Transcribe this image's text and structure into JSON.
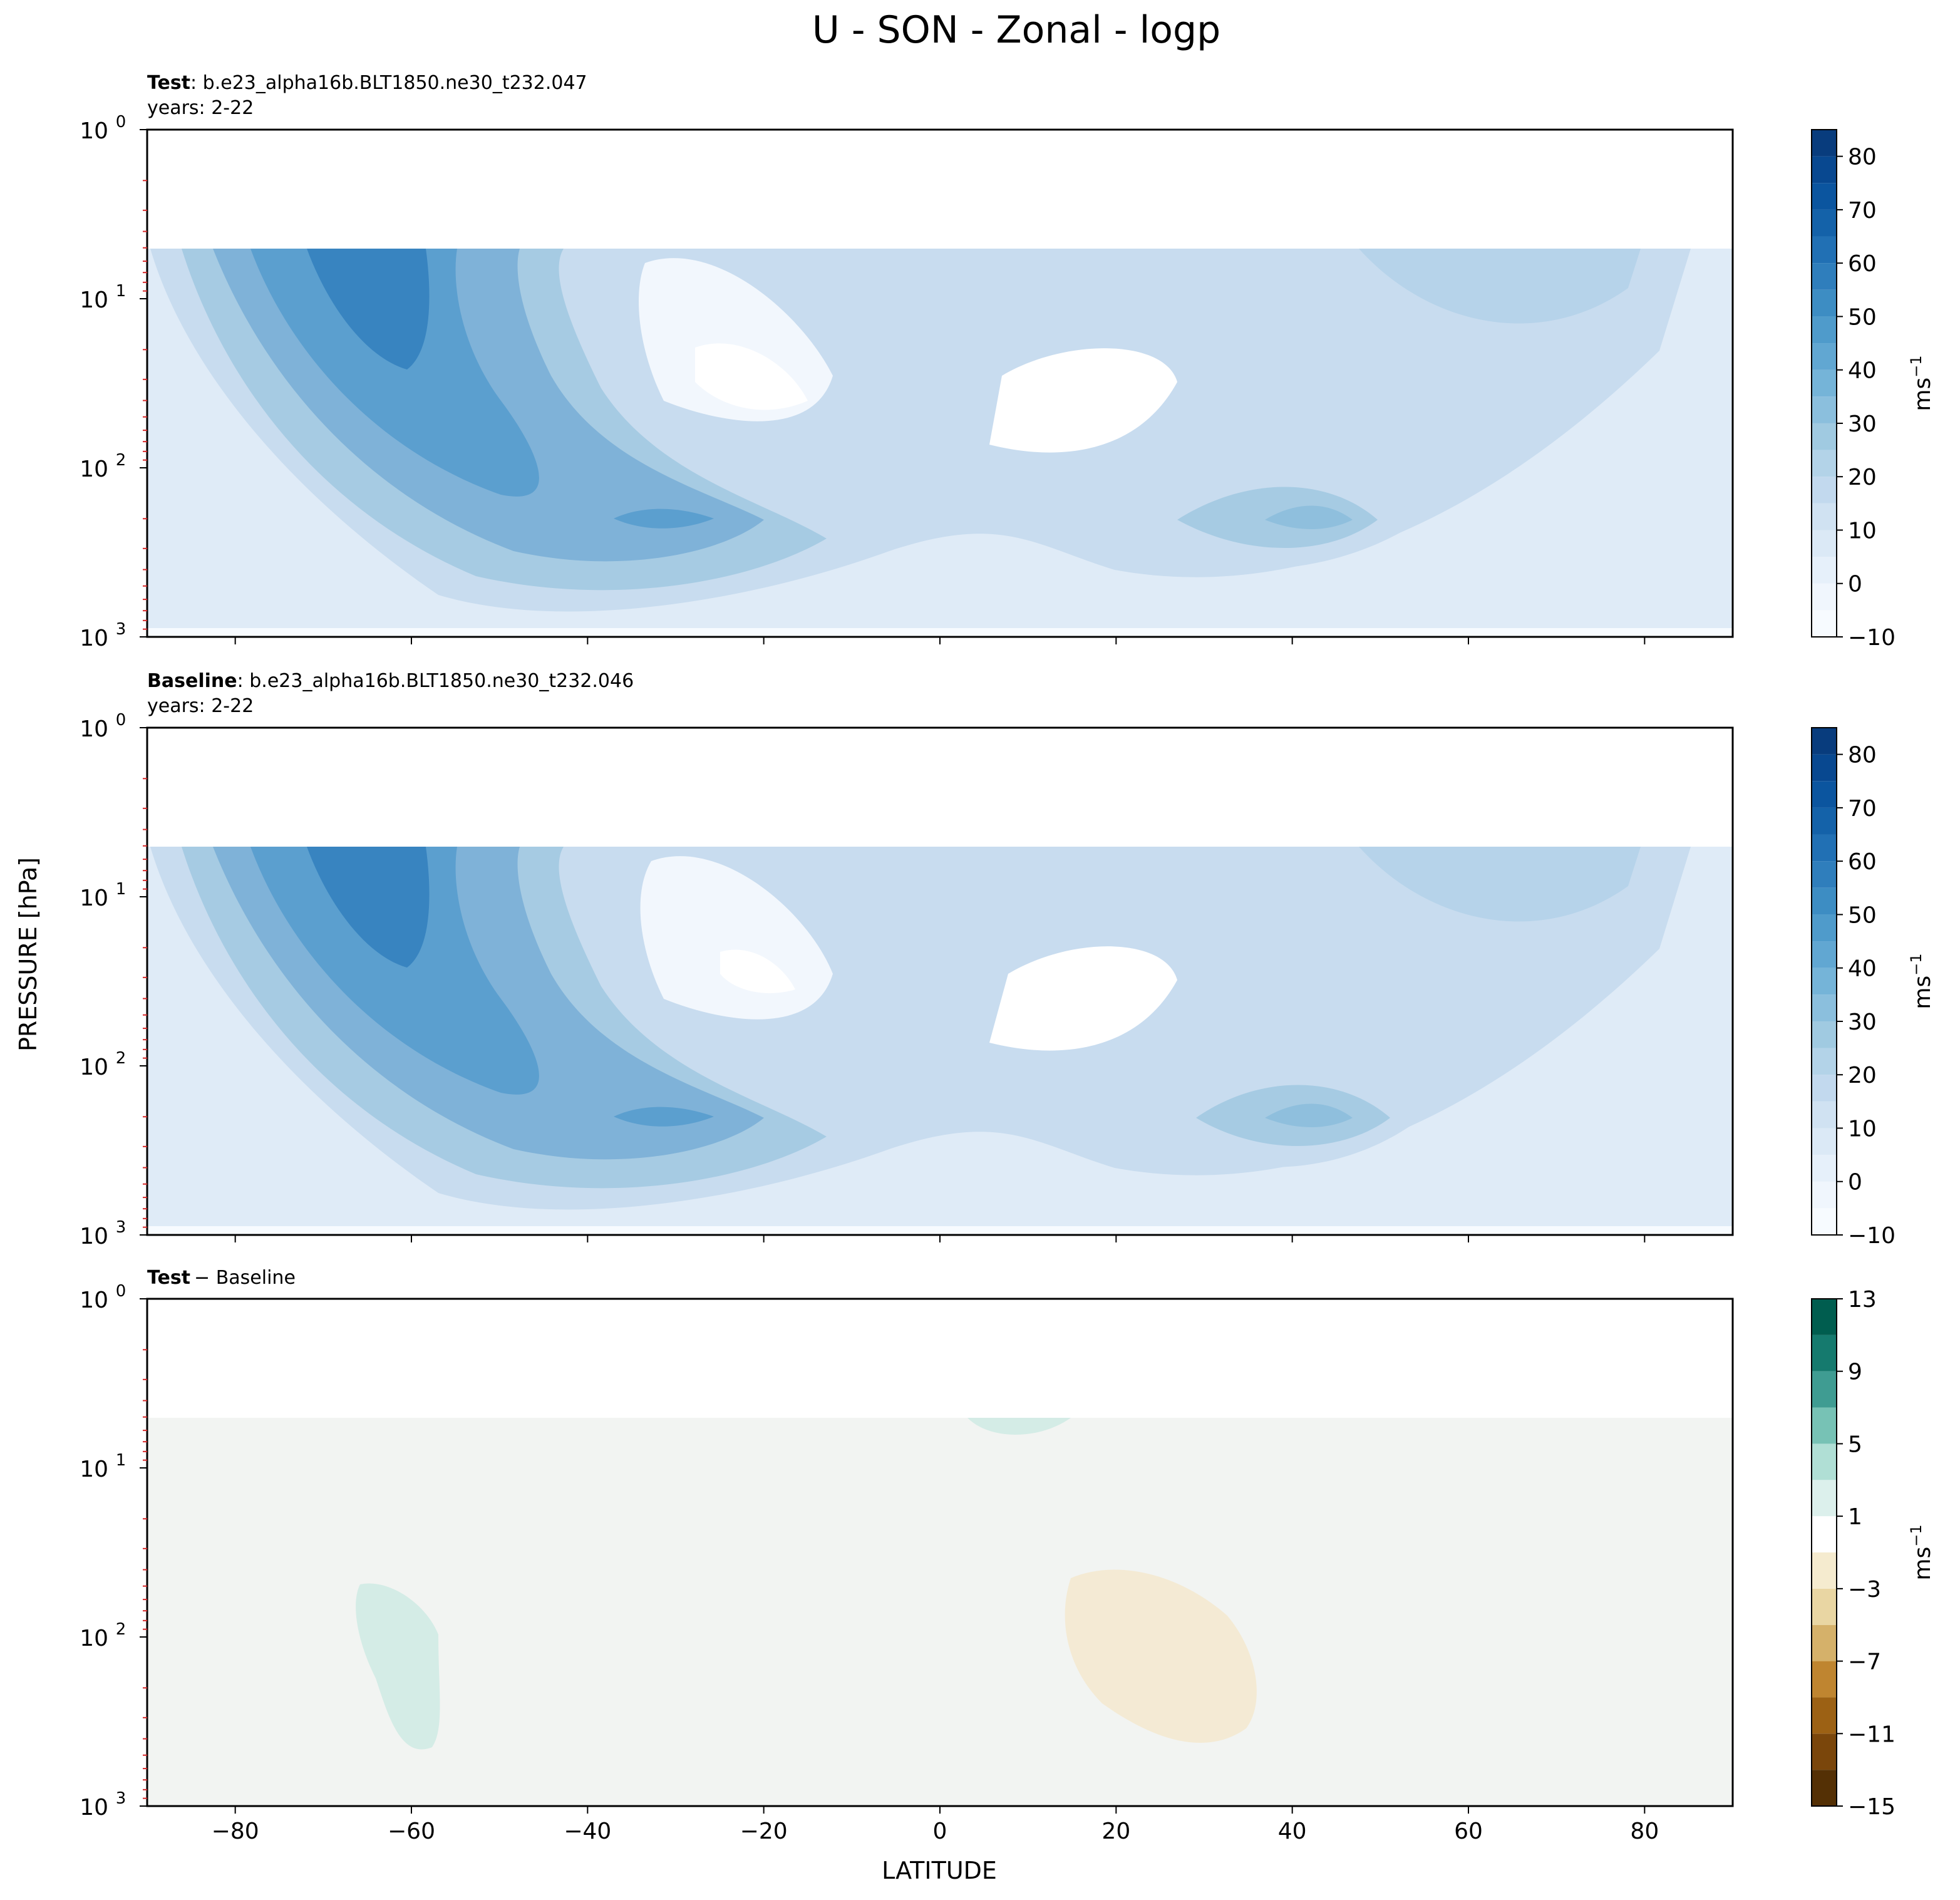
{
  "chart_data": {
    "type": "contour",
    "title": "U - SON - Zonal - logp",
    "xlabel": "LATITUDE",
    "ylabel": "PRESSURE [hPa]",
    "xlim": [
      -90,
      90
    ],
    "ylim": [
      1000,
      1
    ],
    "yscale": "log",
    "x_ticks": [
      -80,
      -60,
      -40,
      -20,
      0,
      20,
      40,
      60,
      80
    ],
    "x_tick_labels": [
      "−80",
      "−60",
      "−40",
      "−20",
      "0",
      "20",
      "40",
      "60",
      "80"
    ],
    "y_tick_labels": [
      {
        "base": "10",
        "exp": "0"
      },
      {
        "base": "10",
        "exp": "1"
      },
      {
        "base": "10",
        "exp": "2"
      },
      {
        "base": "10",
        "exp": "3"
      }
    ],
    "data_top_hPa": 5,
    "panels": [
      {
        "id": "test",
        "label_bold": "Test",
        "label_rest": ": b.e23_alpha16b.BLT1850.ne30_t232.047",
        "years": "years: 2-22",
        "unit": "ms",
        "unit_exp": "−1",
        "cbar_levels": [
          -10,
          -5,
          0,
          5,
          10,
          15,
          20,
          25,
          30,
          35,
          40,
          45,
          50,
          55,
          60,
          65,
          70,
          75,
          80,
          85
        ],
        "cbar_tick_labels": [
          "−10",
          "0",
          "10",
          "20",
          "30",
          "40",
          "50",
          "60",
          "70",
          "80"
        ],
        "cbar_tick_values": [
          -10,
          0,
          10,
          20,
          30,
          40,
          50,
          60,
          70,
          80
        ],
        "features": [
          {
            "kind": "jet",
            "lat": -63,
            "p_hPa": 14,
            "u": 52
          },
          {
            "kind": "jet",
            "lat": -30,
            "p_hPa": 200,
            "u": 42
          },
          {
            "kind": "jet",
            "lat": 43,
            "p_hPa": 200,
            "u": 33
          },
          {
            "kind": "minimum",
            "lat": -23,
            "p_hPa": 30,
            "u": -3
          },
          {
            "kind": "minimum",
            "lat": 12,
            "p_hPa": 50,
            "u": 0
          }
        ]
      },
      {
        "id": "baseline",
        "label_bold": "Baseline",
        "label_rest": ": b.e23_alpha16b.BLT1850.ne30_t232.046",
        "years": "years: 2-22",
        "unit": "ms",
        "unit_exp": "−1",
        "cbar_levels": [
          -10,
          -5,
          0,
          5,
          10,
          15,
          20,
          25,
          30,
          35,
          40,
          45,
          50,
          55,
          60,
          65,
          70,
          75,
          80,
          85
        ],
        "cbar_tick_labels": [
          "−10",
          "0",
          "10",
          "20",
          "30",
          "40",
          "50",
          "60",
          "70",
          "80"
        ],
        "cbar_tick_values": [
          -10,
          0,
          10,
          20,
          30,
          40,
          50,
          60,
          70,
          80
        ],
        "features": [
          {
            "kind": "jet",
            "lat": -63,
            "p_hPa": 14,
            "u": 52
          },
          {
            "kind": "jet",
            "lat": -30,
            "p_hPa": 200,
            "u": 42
          },
          {
            "kind": "jet",
            "lat": 40,
            "p_hPa": 200,
            "u": 33
          },
          {
            "kind": "minimum",
            "lat": -23,
            "p_hPa": 30,
            "u": -3
          },
          {
            "kind": "minimum",
            "lat": 12,
            "p_hPa": 50,
            "u": 0
          }
        ]
      },
      {
        "id": "diff",
        "label_bold": "Test",
        "label_rest": "− Baseline",
        "label_bold_2": "Baseline",
        "unit": "ms",
        "unit_exp": "−1",
        "cbar_levels": [
          -15,
          -13,
          -11,
          -9,
          -7,
          -5,
          -3,
          -1,
          1,
          3,
          5,
          7,
          9,
          11,
          13
        ],
        "cbar_tick_labels": [
          "−15",
          "−11",
          "−7",
          "−3",
          "1",
          "5",
          "9",
          "13"
        ],
        "cbar_tick_values": [
          -15,
          -11,
          -7,
          -3,
          1,
          5,
          9,
          13
        ],
        "features": [
          {
            "kind": "positive",
            "lat": -60,
            "p_hPa": 150,
            "u": 2
          },
          {
            "kind": "negative",
            "lat": 25,
            "p_hPa": 130,
            "u": -2
          },
          {
            "kind": "positive",
            "lat": 9,
            "p_hPa": 5,
            "u": 2
          }
        ]
      }
    ]
  }
}
